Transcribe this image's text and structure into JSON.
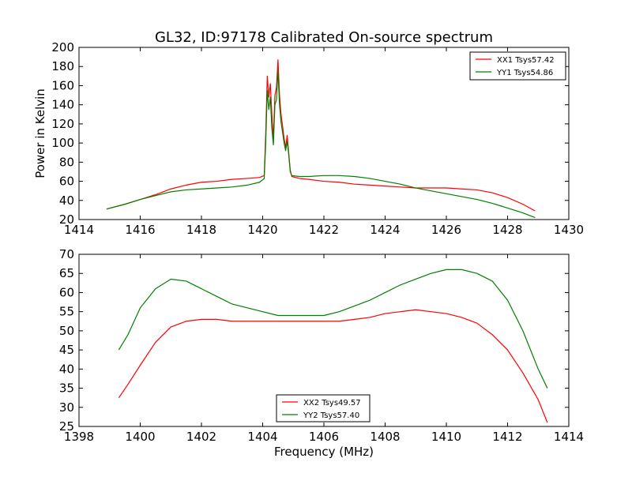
{
  "title": "GL32, ID:97178 Calibrated On-source spectrum",
  "xlabel": "Frequency (MHz)",
  "chart_data": [
    {
      "type": "line",
      "ylabel": "Power in Kelvin",
      "xlim": [
        1414,
        1430
      ],
      "ylim": [
        20,
        200
      ],
      "xticks": [
        1414,
        1416,
        1418,
        1420,
        1422,
        1424,
        1426,
        1428,
        1430
      ],
      "yticks": [
        20,
        40,
        60,
        80,
        100,
        120,
        140,
        160,
        180,
        200
      ],
      "grid": false,
      "legend_position": "top-right",
      "series": [
        {
          "name": "XX1 Tsys57.42",
          "color": "#ff0000",
          "points": [
            [
              1414.9,
              31
            ],
            [
              1415.5,
              36
            ],
            [
              1416.0,
              41
            ],
            [
              1416.5,
              46
            ],
            [
              1417.0,
              52
            ],
            [
              1417.5,
              56
            ],
            [
              1418.0,
              59
            ],
            [
              1418.5,
              60
            ],
            [
              1419.0,
              62
            ],
            [
              1419.5,
              63
            ],
            [
              1419.9,
              64
            ],
            [
              1420.05,
              66
            ],
            [
              1420.1,
              110
            ],
            [
              1420.15,
              170
            ],
            [
              1420.2,
              148
            ],
            [
              1420.25,
              162
            ],
            [
              1420.3,
              130
            ],
            [
              1420.35,
              105
            ],
            [
              1420.4,
              150
            ],
            [
              1420.45,
              158
            ],
            [
              1420.5,
              187
            ],
            [
              1420.55,
              150
            ],
            [
              1420.6,
              130
            ],
            [
              1420.7,
              105
            ],
            [
              1420.75,
              95
            ],
            [
              1420.8,
              108
            ],
            [
              1420.85,
              90
            ],
            [
              1420.9,
              72
            ],
            [
              1420.95,
              65
            ],
            [
              1421.2,
              63
            ],
            [
              1421.5,
              62
            ],
            [
              1422.0,
              60
            ],
            [
              1422.5,
              59
            ],
            [
              1423.0,
              57
            ],
            [
              1423.5,
              56
            ],
            [
              1424.0,
              55
            ],
            [
              1424.5,
              54
            ],
            [
              1425.0,
              53
            ],
            [
              1425.5,
              53
            ],
            [
              1426.0,
              53
            ],
            [
              1426.5,
              52
            ],
            [
              1427.0,
              51
            ],
            [
              1427.5,
              48
            ],
            [
              1428.0,
              43
            ],
            [
              1428.5,
              36
            ],
            [
              1428.9,
              29
            ]
          ]
        },
        {
          "name": "YY1 Tsys54.86",
          "color": "#008000",
          "points": [
            [
              1414.9,
              31
            ],
            [
              1415.5,
              36
            ],
            [
              1416.0,
              41
            ],
            [
              1416.5,
              45
            ],
            [
              1417.0,
              49
            ],
            [
              1417.5,
              51
            ],
            [
              1418.0,
              52
            ],
            [
              1418.5,
              53
            ],
            [
              1419.0,
              54
            ],
            [
              1419.5,
              56
            ],
            [
              1419.9,
              59
            ],
            [
              1420.05,
              63
            ],
            [
              1420.1,
              100
            ],
            [
              1420.15,
              155
            ],
            [
              1420.2,
              135
            ],
            [
              1420.25,
              148
            ],
            [
              1420.3,
              115
            ],
            [
              1420.35,
              98
            ],
            [
              1420.4,
              140
            ],
            [
              1420.45,
              145
            ],
            [
              1420.5,
              176
            ],
            [
              1420.55,
              140
            ],
            [
              1420.6,
              122
            ],
            [
              1420.7,
              100
            ],
            [
              1420.75,
              92
            ],
            [
              1420.8,
              102
            ],
            [
              1420.85,
              88
            ],
            [
              1420.9,
              70
            ],
            [
              1420.95,
              66
            ],
            [
              1421.2,
              65
            ],
            [
              1421.5,
              65
            ],
            [
              1422.0,
              66
            ],
            [
              1422.5,
              66
            ],
            [
              1423.0,
              65
            ],
            [
              1423.5,
              63
            ],
            [
              1424.0,
              60
            ],
            [
              1424.5,
              57
            ],
            [
              1425.0,
              53
            ],
            [
              1425.5,
              50
            ],
            [
              1426.0,
              47
            ],
            [
              1426.5,
              44
            ],
            [
              1427.0,
              41
            ],
            [
              1427.5,
              37
            ],
            [
              1428.0,
              32
            ],
            [
              1428.5,
              27
            ],
            [
              1428.9,
              22
            ]
          ]
        }
      ]
    },
    {
      "type": "line",
      "ylabel": "",
      "xlim": [
        1398,
        1414
      ],
      "ylim": [
        25,
        70
      ],
      "xticks": [
        1398,
        1400,
        1402,
        1404,
        1406,
        1408,
        1410,
        1412,
        1414
      ],
      "yticks": [
        25,
        30,
        35,
        40,
        45,
        50,
        55,
        60,
        65,
        70
      ],
      "grid": false,
      "legend_position": "bottom-center",
      "series": [
        {
          "name": "XX2 Tsys49.57",
          "color": "#ff0000",
          "points": [
            [
              1399.3,
              32.5
            ],
            [
              1399.6,
              36
            ],
            [
              1400.0,
              41
            ],
            [
              1400.5,
              47
            ],
            [
              1401.0,
              51
            ],
            [
              1401.5,
              52.5
            ],
            [
              1402.0,
              53
            ],
            [
              1402.5,
              53
            ],
            [
              1403.0,
              52.5
            ],
            [
              1403.5,
              52.5
            ],
            [
              1404.0,
              52.5
            ],
            [
              1404.5,
              52.5
            ],
            [
              1405.0,
              52.5
            ],
            [
              1405.5,
              52.5
            ],
            [
              1406.0,
              52.5
            ],
            [
              1406.5,
              52.5
            ],
            [
              1407.0,
              53
            ],
            [
              1407.5,
              53.5
            ],
            [
              1408.0,
              54.5
            ],
            [
              1408.5,
              55
            ],
            [
              1409.0,
              55.5
            ],
            [
              1409.5,
              55
            ],
            [
              1410.0,
              54.5
            ],
            [
              1410.5,
              53.5
            ],
            [
              1411.0,
              52
            ],
            [
              1411.5,
              49
            ],
            [
              1412.0,
              45
            ],
            [
              1412.5,
              39
            ],
            [
              1413.0,
              32
            ],
            [
              1413.3,
              26
            ]
          ]
        },
        {
          "name": "YY2 Tsys57.40",
          "color": "#008000",
          "points": [
            [
              1399.3,
              45
            ],
            [
              1399.6,
              49
            ],
            [
              1400.0,
              56
            ],
            [
              1400.5,
              61
            ],
            [
              1401.0,
              63.5
            ],
            [
              1401.5,
              63
            ],
            [
              1402.0,
              61
            ],
            [
              1402.5,
              59
            ],
            [
              1403.0,
              57
            ],
            [
              1403.5,
              56
            ],
            [
              1404.0,
              55
            ],
            [
              1404.5,
              54
            ],
            [
              1405.0,
              54
            ],
            [
              1405.5,
              54
            ],
            [
              1406.0,
              54
            ],
            [
              1406.5,
              55
            ],
            [
              1407.0,
              56.5
            ],
            [
              1407.5,
              58
            ],
            [
              1408.0,
              60
            ],
            [
              1408.5,
              62
            ],
            [
              1409.0,
              63.5
            ],
            [
              1409.5,
              65
            ],
            [
              1410.0,
              66
            ],
            [
              1410.5,
              66
            ],
            [
              1411.0,
              65
            ],
            [
              1411.5,
              63
            ],
            [
              1412.0,
              58
            ],
            [
              1412.5,
              50
            ],
            [
              1413.0,
              40
            ],
            [
              1413.3,
              35
            ]
          ]
        }
      ]
    }
  ]
}
